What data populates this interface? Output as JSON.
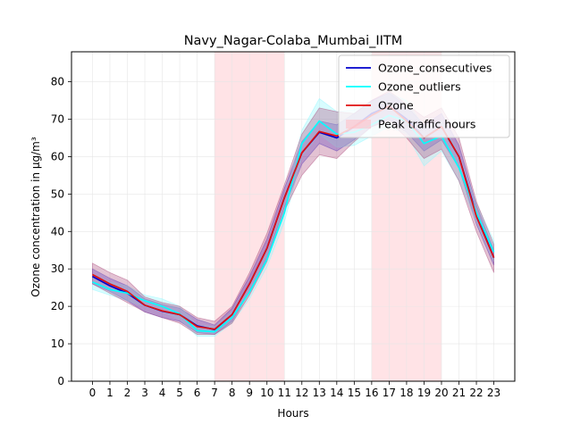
{
  "chart_data": {
    "type": "line",
    "title": "Navy_Nagar-Colaba_Mumbai_IITM",
    "xlabel": "Hours",
    "ylabel": "Ozone concentration in µg/m³",
    "x": [
      0,
      1,
      2,
      3,
      4,
      5,
      6,
      7,
      8,
      9,
      10,
      11,
      12,
      13,
      14,
      15,
      16,
      17,
      18,
      19,
      20,
      21,
      22,
      23
    ],
    "xlim": [
      -1.2,
      24.2
    ],
    "ylim": [
      0,
      88
    ],
    "yticks": [
      0,
      10,
      20,
      30,
      40,
      50,
      60,
      70,
      80
    ],
    "grid": true,
    "legend_position": "top-right",
    "peak_hours": {
      "label": "Peak traffic hours",
      "color": "#ffc0c8",
      "ranges": [
        [
          7,
          11
        ],
        [
          16,
          20
        ]
      ]
    },
    "series": [
      {
        "name": "Ozone_consecutives",
        "color": "#0000cc",
        "band_color": "#3a3ad8",
        "values": [
          28,
          25.5,
          23.5,
          20.3,
          18.7,
          17.8,
          14.8,
          13.8,
          17.8,
          26,
          35.5,
          49,
          61,
          66.5,
          65,
          68,
          71.5,
          73.5,
          70,
          65,
          68,
          60,
          44.5,
          33
        ],
        "lower": [
          26,
          24,
          21.5,
          18.5,
          17,
          16,
          13,
          12.5,
          16,
          24,
          33,
          46.5,
          58,
          63.5,
          61.5,
          64.5,
          68,
          70,
          66.5,
          61.5,
          64.5,
          57,
          42,
          31
        ],
        "upper": [
          30,
          27.5,
          25.5,
          22,
          20.5,
          19.5,
          16.5,
          15,
          19.5,
          28,
          38,
          51.5,
          64,
          69.5,
          68.5,
          71.5,
          75,
          77,
          73.5,
          68.5,
          71.5,
          63,
          47,
          35
        ]
      },
      {
        "name": "Ozone_outliers",
        "color": "#00ffff",
        "band_color": "#8ff8ff",
        "values": [
          26.5,
          24.5,
          23.5,
          21.5,
          20,
          18,
          13.5,
          13.2,
          17,
          23.8,
          32.5,
          45,
          63.5,
          69.5,
          66,
          66.5,
          68.5,
          71,
          69.5,
          63.5,
          65.5,
          57,
          45,
          34.5
        ],
        "lower": [
          24.5,
          23,
          21.5,
          20,
          18.5,
          16.5,
          12,
          12,
          15.5,
          22,
          30.5,
          42.5,
          60,
          66,
          62.5,
          63,
          65.5,
          68,
          66,
          57.5,
          61.5,
          53.5,
          42.5,
          32
        ],
        "upper": [
          28.5,
          26.5,
          25.5,
          23,
          22,
          20,
          15,
          14.5,
          18.5,
          26,
          35,
          48,
          67,
          75.5,
          72,
          72.5,
          74.5,
          77,
          75,
          68,
          69.5,
          60.5,
          47.5,
          37.5
        ]
      },
      {
        "name": "Ozone",
        "color": "#e01010",
        "band_color": "#b05080",
        "values": [
          28.5,
          26,
          24,
          20.3,
          18.8,
          17.8,
          14.6,
          13.9,
          17.8,
          26,
          35.5,
          49,
          61,
          66.7,
          65.5,
          68,
          71,
          73.5,
          69.5,
          65,
          68,
          60,
          44,
          33
        ],
        "lower": [
          26,
          23.5,
          21,
          18.5,
          17,
          15.5,
          12.5,
          12.5,
          15.5,
          23,
          32,
          45.5,
          55,
          60.5,
          59.5,
          64,
          68,
          69.5,
          65,
          59.5,
          62,
          53.5,
          40,
          29
        ],
        "upper": [
          31.5,
          29,
          27,
          22.5,
          21,
          20,
          17,
          16,
          20,
          29,
          39.5,
          52.5,
          66,
          73,
          72,
          71.5,
          75,
          77.5,
          74,
          70.5,
          73,
          65,
          48,
          36.5
        ]
      }
    ]
  }
}
